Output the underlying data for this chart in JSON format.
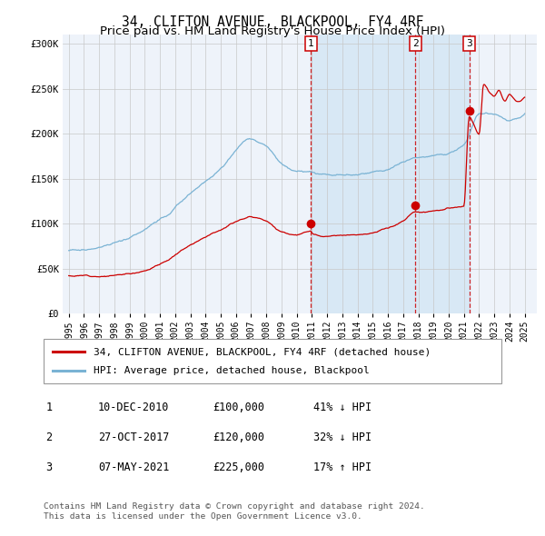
{
  "title": "34, CLIFTON AVENUE, BLACKPOOL, FY4 4RF",
  "subtitle": "Price paid vs. HM Land Registry's House Price Index (HPI)",
  "ylim": [
    0,
    310000
  ],
  "yticks": [
    0,
    50000,
    100000,
    150000,
    200000,
    250000,
    300000
  ],
  "ytick_labels": [
    "£0",
    "£50K",
    "£100K",
    "£150K",
    "£200K",
    "£250K",
    "£300K"
  ],
  "hpi_color": "#7ab3d4",
  "price_color": "#cc0000",
  "bg_color": "#ffffff",
  "plot_bg_color": "#eef3fa",
  "grid_color": "#c8c8c8",
  "shade_color": "#d8e8f5",
  "transactions": [
    {
      "date_num": 2010.94,
      "price": 100000,
      "label": "1"
    },
    {
      "date_num": 2017.82,
      "price": 120000,
      "label": "2"
    },
    {
      "date_num": 2021.35,
      "price": 225000,
      "label": "3"
    }
  ],
  "legend_entries": [
    {
      "label": "34, CLIFTON AVENUE, BLACKPOOL, FY4 4RF (detached house)",
      "color": "#cc0000"
    },
    {
      "label": "HPI: Average price, detached house, Blackpool",
      "color": "#7ab3d4"
    }
  ],
  "table_rows": [
    {
      "num": "1",
      "date": "10-DEC-2010",
      "price": "£100,000",
      "change": "41% ↓ HPI"
    },
    {
      "num": "2",
      "date": "27-OCT-2017",
      "price": "£120,000",
      "change": "32% ↓ HPI"
    },
    {
      "num": "3",
      "date": "07-MAY-2021",
      "price": "£225,000",
      "change": "17% ↑ HPI"
    }
  ],
  "footer": "Contains HM Land Registry data © Crown copyright and database right 2024.\nThis data is licensed under the Open Government Licence v3.0.",
  "title_fontsize": 10.5,
  "subtitle_fontsize": 9.5,
  "tick_fontsize": 7.5,
  "legend_fontsize": 8.0,
  "table_fontsize": 8.5
}
